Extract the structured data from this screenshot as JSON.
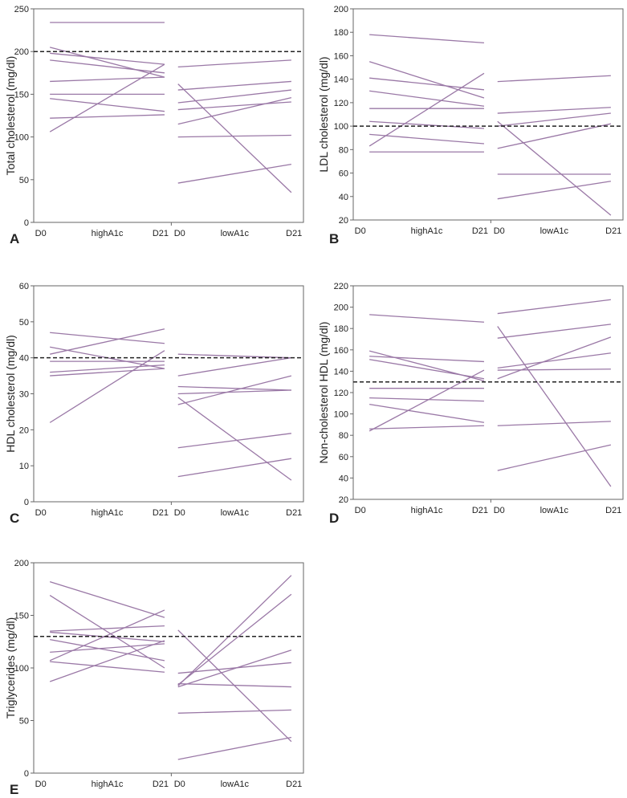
{
  "figure": {
    "colors": {
      "series": "#9a78a6",
      "reference": "#222222",
      "frame": "#666666",
      "text": "#222222"
    }
  },
  "chart_data": [
    {
      "type": "line",
      "panel_label": "A",
      "ylabel": "Total cholesterol (mg/dl)",
      "ylim": [
        0,
        250
      ],
      "yticks": [
        0,
        50,
        100,
        150,
        200,
        250
      ],
      "reference_line": 200,
      "groups": [
        {
          "name": "highA1c",
          "x_labels": [
            "D0",
            "D21"
          ],
          "series": [
            {
              "values": [
                234,
                234
              ]
            },
            {
              "values": [
                205,
                170
              ]
            },
            {
              "values": [
                198,
                185
              ]
            },
            {
              "values": [
                190,
                175
              ]
            },
            {
              "values": [
                165,
                170
              ]
            },
            {
              "values": [
                150,
                150
              ]
            },
            {
              "values": [
                145,
                130
              ]
            },
            {
              "values": [
                122,
                126
              ]
            },
            {
              "values": [
                106,
                185
              ]
            }
          ]
        },
        {
          "name": "lowA1c",
          "x_labels": [
            "D0",
            "D21"
          ],
          "series": [
            {
              "values": [
                182,
                190
              ]
            },
            {
              "values": [
                162,
                35
              ]
            },
            {
              "values": [
                155,
                165
              ]
            },
            {
              "values": [
                140,
                155
              ]
            },
            {
              "values": [
                132,
                141
              ]
            },
            {
              "values": [
                115,
                146
              ]
            },
            {
              "values": [
                100,
                102
              ]
            },
            {
              "values": [
                46,
                68
              ]
            }
          ]
        }
      ]
    },
    {
      "type": "line",
      "panel_label": "B",
      "ylabel": "LDL cholesterol (mg/dl)",
      "ylim": [
        20,
        200
      ],
      "yticks": [
        20,
        40,
        60,
        80,
        100,
        120,
        140,
        160,
        180,
        200
      ],
      "reference_line": 100,
      "groups": [
        {
          "name": "highA1c",
          "x_labels": [
            "D0",
            "D21"
          ],
          "series": [
            {
              "values": [
                178,
                171
              ]
            },
            {
              "values": [
                155,
                124
              ]
            },
            {
              "values": [
                141,
                131
              ]
            },
            {
              "values": [
                130,
                117
              ]
            },
            {
              "values": [
                115,
                115
              ]
            },
            {
              "values": [
                104,
                98
              ]
            },
            {
              "values": [
                93,
                85
              ]
            },
            {
              "values": [
                83,
                145
              ]
            },
            {
              "values": [
                78,
                78
              ]
            }
          ]
        },
        {
          "name": "lowA1c",
          "x_labels": [
            "D0",
            "D21"
          ],
          "series": [
            {
              "values": [
                138,
                143
              ]
            },
            {
              "values": [
                111,
                116
              ]
            },
            {
              "values": [
                104,
                24
              ]
            },
            {
              "values": [
                100,
                111
              ]
            },
            {
              "values": [
                81,
                102
              ]
            },
            {
              "values": [
                59,
                59
              ]
            },
            {
              "values": [
                38,
                53
              ]
            }
          ]
        }
      ]
    },
    {
      "type": "line",
      "panel_label": "C",
      "ylabel": "HDL cholesterol (mg/dl)",
      "ylim": [
        0,
        60
      ],
      "yticks": [
        0,
        10,
        20,
        30,
        40,
        50,
        60
      ],
      "reference_line": 40,
      "groups": [
        {
          "name": "highA1c",
          "x_labels": [
            "D0",
            "D21"
          ],
          "series": [
            {
              "values": [
                47,
                44
              ]
            },
            {
              "values": [
                43,
                37
              ]
            },
            {
              "values": [
                41,
                48
              ]
            },
            {
              "values": [
                39,
                39
              ]
            },
            {
              "values": [
                36,
                38
              ]
            },
            {
              "values": [
                35,
                37
              ]
            },
            {
              "values": [
                22,
                42
              ]
            }
          ]
        },
        {
          "name": "lowA1c",
          "x_labels": [
            "D0",
            "D21"
          ],
          "series": [
            {
              "values": [
                41,
                40
              ]
            },
            {
              "values": [
                35,
                40
              ]
            },
            {
              "values": [
                32,
                31
              ]
            },
            {
              "values": [
                30,
                31
              ]
            },
            {
              "values": [
                29,
                6
              ]
            },
            {
              "values": [
                27,
                35
              ]
            },
            {
              "values": [
                15,
                19
              ]
            },
            {
              "values": [
                7,
                12
              ]
            }
          ]
        }
      ]
    },
    {
      "type": "line",
      "panel_label": "D",
      "ylabel": "Non-cholesterol HDL (mg/dl)",
      "ylim": [
        20,
        220
      ],
      "yticks": [
        20,
        40,
        60,
        80,
        100,
        120,
        140,
        160,
        180,
        200,
        220
      ],
      "reference_line": 130,
      "groups": [
        {
          "name": "highA1c",
          "x_labels": [
            "D0",
            "D21"
          ],
          "series": [
            {
              "values": [
                193,
                186
              ]
            },
            {
              "values": [
                159,
                131
              ]
            },
            {
              "values": [
                154,
                149
              ]
            },
            {
              "values": [
                151,
                133
              ]
            },
            {
              "values": [
                124,
                124
              ]
            },
            {
              "values": [
                115,
                112
              ]
            },
            {
              "values": [
                109,
                92
              ]
            },
            {
              "values": [
                86,
                89
              ]
            },
            {
              "values": [
                84,
                141
              ]
            }
          ]
        },
        {
          "name": "lowA1c",
          "x_labels": [
            "D0",
            "D21"
          ],
          "series": [
            {
              "values": [
                194,
                207
              ]
            },
            {
              "values": [
                182,
                32
              ]
            },
            {
              "values": [
                171,
                184
              ]
            },
            {
              "values": [
                143,
                157
              ]
            },
            {
              "values": [
                141,
                142
              ]
            },
            {
              "values": [
                133,
                172
              ]
            },
            {
              "values": [
                89,
                93
              ]
            },
            {
              "values": [
                47,
                71
              ]
            }
          ]
        }
      ]
    },
    {
      "type": "line",
      "panel_label": "E",
      "ylabel": "Triglycerides (mg/dl)",
      "ylim": [
        0,
        200
      ],
      "yticks": [
        0,
        50,
        100,
        150,
        200
      ],
      "reference_line": 130,
      "groups": [
        {
          "name": "highA1c",
          "x_labels": [
            "D0",
            "D21"
          ],
          "series": [
            {
              "values": [
                182,
                148
              ]
            },
            {
              "values": [
                169,
                100
              ]
            },
            {
              "values": [
                135,
                140
              ]
            },
            {
              "values": [
                134,
                125
              ]
            },
            {
              "values": [
                127,
                107
              ]
            },
            {
              "values": [
                115,
                123
              ]
            },
            {
              "values": [
                107,
                155
              ]
            },
            {
              "values": [
                106,
                96
              ]
            },
            {
              "values": [
                87,
                126
              ]
            }
          ]
        },
        {
          "name": "lowA1c",
          "x_labels": [
            "D0",
            "D21"
          ],
          "series": [
            {
              "values": [
                136,
                30
              ]
            },
            {
              "values": [
                95,
                105
              ]
            },
            {
              "values": [
                85,
                82
              ]
            },
            {
              "values": [
                84,
                170
              ]
            },
            {
              "values": [
                83,
                188
              ]
            },
            {
              "values": [
                82,
                117
              ]
            },
            {
              "values": [
                57,
                60
              ]
            },
            {
              "values": [
                13,
                34
              ]
            }
          ]
        }
      ]
    }
  ]
}
